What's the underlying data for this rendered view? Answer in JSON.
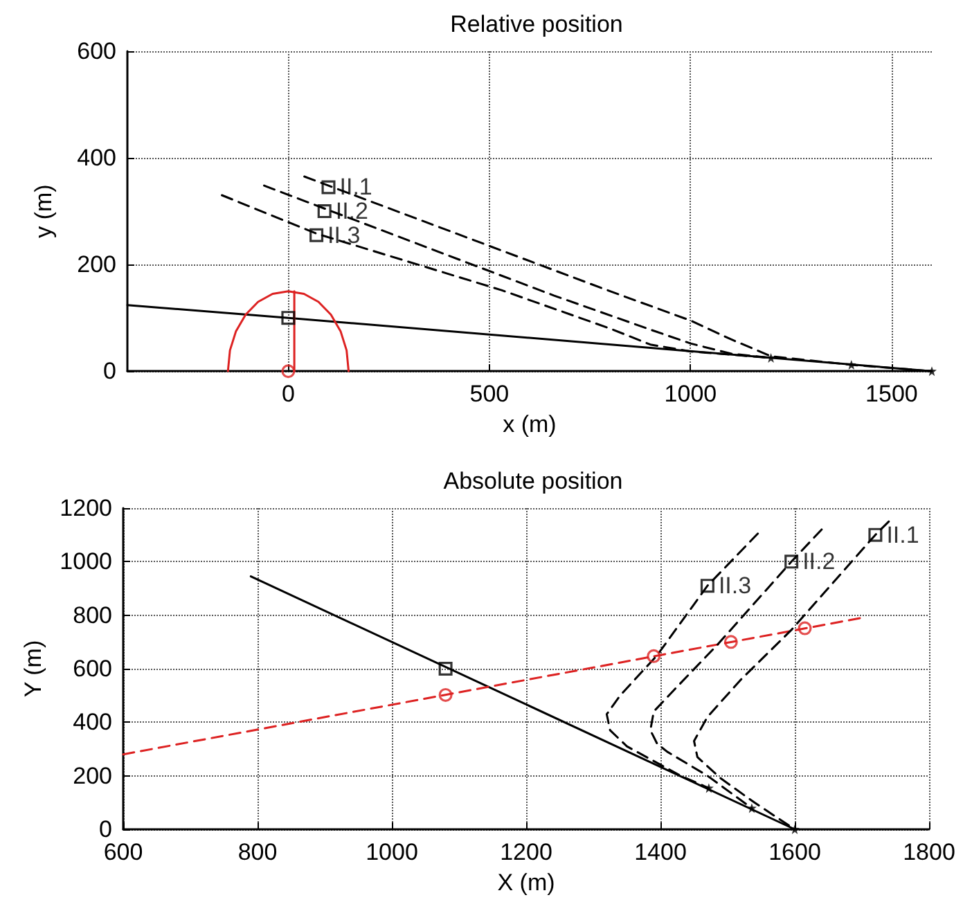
{
  "chart_data": [
    {
      "type": "line",
      "title": "Relative position",
      "xlabel": "x (m)",
      "ylabel": "y (m)",
      "xlim": [
        -400,
        1600
      ],
      "xticks": [
        0,
        500,
        1000,
        1500
      ],
      "ylim": [
        0,
        600
      ],
      "yticks": [
        0,
        200,
        400,
        600
      ],
      "grid": true,
      "annotations": [
        {
          "text": "II.1",
          "x": 100,
          "y": 345
        },
        {
          "text": "II.2",
          "x": 90,
          "y": 300
        },
        {
          "text": "II.3",
          "x": 70,
          "y": 255
        }
      ],
      "series": [
        {
          "type": "line",
          "color": "#000000",
          "line_style": "solid",
          "marker": "none",
          "x": [
            -400,
            0,
            1600
          ],
          "values": [
            124,
            100,
            0
          ]
        },
        {
          "type": "line",
          "color": "#000000",
          "line_style": "dashed",
          "marker": "none",
          "x": [
            40,
            100,
            800,
            1000,
            1100,
            1200,
            1400,
            1600
          ],
          "values": [
            365,
            348,
            150,
            95,
            60,
            28,
            12,
            0
          ]
        },
        {
          "type": "line",
          "color": "#000000",
          "line_style": "dashed",
          "marker": "none",
          "x": [
            -60,
            90,
            660,
            900,
            1000,
            1100,
            1200
          ],
          "values": [
            348,
            305,
            142,
            78,
            52,
            33,
            25
          ]
        },
        {
          "type": "line",
          "color": "#000000",
          "line_style": "dashed",
          "marker": "none",
          "x": [
            -165,
            70,
            530,
            800,
            900,
            1000,
            1200
          ],
          "values": [
            330,
            258,
            152,
            80,
            50,
            37,
            25
          ]
        },
        {
          "type": "line",
          "color": "#dd2222",
          "line_style": "solid",
          "marker": "none",
          "x": [
            150,
            145,
            130,
            106,
            75,
            39,
            0,
            -39,
            -75,
            -106,
            -130,
            -145,
            -150
          ],
          "values": [
            0,
            39,
            75,
            106,
            130,
            145,
            150,
            145,
            130,
            106,
            75,
            39,
            0
          ]
        },
        {
          "type": "line",
          "color": "#dd2222",
          "line_style": "solid",
          "marker": "none",
          "x": [
            15,
            15
          ],
          "values": [
            0,
            150
          ]
        },
        {
          "type": "scatter",
          "color": "#000000",
          "marker": "square",
          "x": [
            0,
            100,
            90,
            70
          ],
          "values": [
            100,
            345,
            300,
            255
          ]
        },
        {
          "type": "scatter",
          "color": "#000000",
          "marker": "star",
          "x": [
            1200,
            1400,
            1600
          ],
          "values": [
            25,
            12,
            0
          ]
        },
        {
          "type": "scatter",
          "color": "#dd2222",
          "marker": "circle",
          "x": [
            0
          ],
          "values": [
            0
          ]
        }
      ]
    },
    {
      "type": "line",
      "title": "Absolute position",
      "xlabel": "X (m)",
      "ylabel": "Y (m)",
      "xlim": [
        600,
        1800
      ],
      "xticks": [
        600,
        800,
        1000,
        1200,
        1400,
        1600,
        1800
      ],
      "ylim": [
        0,
        1200
      ],
      "yticks": [
        0,
        200,
        400,
        600,
        800,
        1000,
        1200
      ],
      "grid": true,
      "annotations": [
        {
          "text": "II.1",
          "x": 1720,
          "y": 1100
        },
        {
          "text": "II.2",
          "x": 1595,
          "y": 1000
        },
        {
          "text": "II.3",
          "x": 1470,
          "y": 910
        }
      ],
      "series": [
        {
          "type": "line",
          "color": "#000000",
          "line_style": "solid",
          "marker": "none",
          "x": [
            790,
            1600
          ],
          "values": [
            945,
            0
          ]
        },
        {
          "type": "line",
          "color": "#dd2222",
          "line_style": "dashed",
          "marker": "none",
          "x": [
            600,
            1700
          ],
          "values": [
            280,
            790
          ]
        },
        {
          "type": "line",
          "color": "#000000",
          "line_style": "dashed",
          "marker": "none",
          "x": [
            1740,
            1720,
            1595,
            1520,
            1470,
            1450,
            1455,
            1490,
            1540,
            1600
          ],
          "values": [
            1150,
            1100,
            745,
            560,
            420,
            330,
            270,
            190,
            100,
            0
          ]
        },
        {
          "type": "line",
          "color": "#000000",
          "line_style": "dashed",
          "marker": "none",
          "x": [
            1640,
            1595,
            1485,
            1420,
            1390,
            1385,
            1395,
            1410,
            1470,
            1536
          ],
          "values": [
            1120,
            1000,
            690,
            520,
            440,
            370,
            320,
            290,
            200,
            79
          ]
        },
        {
          "type": "line",
          "color": "#000000",
          "line_style": "dashed",
          "marker": "none",
          "x": [
            1545,
            1470,
            1395,
            1340,
            1320,
            1325,
            1350,
            1430,
            1472
          ],
          "values": [
            1105,
            910,
            650,
            500,
            430,
            370,
            310,
            200,
            154
          ]
        },
        {
          "type": "scatter",
          "color": "#dd2222",
          "marker": "circle",
          "x": [
            1080,
            1390,
            1505,
            1615
          ],
          "values": [
            502,
            647,
            700,
            751
          ]
        },
        {
          "type": "scatter",
          "color": "#000000",
          "marker": "square",
          "x": [
            1080,
            1720,
            1595,
            1470
          ],
          "values": [
            600,
            1100,
            1000,
            910
          ]
        },
        {
          "type": "scatter",
          "color": "#000000",
          "marker": "star",
          "x": [
            1472,
            1536,
            1600
          ],
          "values": [
            154,
            79,
            0
          ]
        }
      ]
    }
  ]
}
